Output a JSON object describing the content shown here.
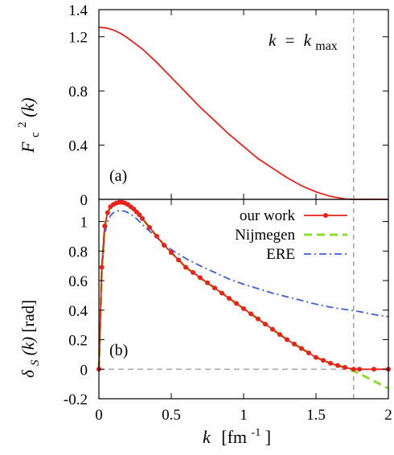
{
  "chart_data": [
    {
      "panel": "(a)",
      "type": "line",
      "ylabel": {
        "base": "F",
        "sub": "c",
        "sup": "2",
        "arg": "(k)"
      },
      "xlim": [
        0,
        2
      ],
      "ylim": [
        0,
        1.4
      ],
      "yticks": [
        "0",
        "0.4",
        "0.8",
        "1.2",
        "1.4"
      ],
      "annotation": {
        "lhs": "k",
        "eq": "=",
        "rhs": "k",
        "rhs_sub": "max"
      },
      "kmax": 1.76,
      "series": [
        {
          "color": "#e8211b",
          "x": [
            0,
            0.05,
            0.1,
            0.15,
            0.2,
            0.3,
            0.4,
            0.5,
            0.6,
            0.7,
            0.8,
            0.9,
            1.0,
            1.1,
            1.2,
            1.3,
            1.4,
            1.5,
            1.6,
            1.7,
            1.76,
            2.0
          ],
          "y": [
            1.27,
            1.265,
            1.25,
            1.225,
            1.19,
            1.11,
            1.01,
            0.9,
            0.79,
            0.68,
            0.58,
            0.48,
            0.39,
            0.3,
            0.23,
            0.16,
            0.1,
            0.055,
            0.022,
            0.003,
            0,
            0
          ]
        }
      ]
    },
    {
      "panel": "(b)",
      "type": "line",
      "ylabel": {
        "base": "δ",
        "sub": "S",
        "arg": "(k)",
        "unit": "[rad]"
      },
      "xlabel": {
        "var": "k",
        "unit_open": "[fm",
        "unit_sup": "-1",
        "unit_close": "]"
      },
      "xlim": [
        0,
        2
      ],
      "ylim": [
        -0.2,
        1.15
      ],
      "xticks": [
        "0",
        "0.5",
        "1",
        "1.5",
        "2"
      ],
      "yticks": [
        "-0.2",
        "0",
        "0.2",
        "0.4",
        "0.6",
        "0.8",
        "1"
      ],
      "legend_position": "top-right",
      "series": [
        {
          "name": "our work",
          "color": "#e8211b",
          "style": "solid-points",
          "x": [
            0,
            0.02,
            0.04,
            0.06,
            0.08,
            0.1,
            0.12,
            0.14,
            0.16,
            0.18,
            0.2,
            0.22,
            0.24,
            0.26,
            0.28,
            0.3,
            0.35,
            0.4,
            0.45,
            0.5,
            0.55,
            0.6,
            0.65,
            0.7,
            0.75,
            0.8,
            0.85,
            0.9,
            0.95,
            1.0,
            1.05,
            1.1,
            1.15,
            1.2,
            1.25,
            1.3,
            1.35,
            1.4,
            1.45,
            1.5,
            1.55,
            1.6,
            1.65,
            1.7,
            1.76,
            1.8,
            1.9,
            2.0
          ],
          "y": [
            0,
            0.69,
            0.97,
            1.06,
            1.1,
            1.115,
            1.125,
            1.13,
            1.13,
            1.125,
            1.115,
            1.1,
            1.085,
            1.065,
            1.045,
            1.02,
            0.96,
            0.9,
            0.84,
            0.79,
            0.74,
            0.69,
            0.655,
            0.62,
            0.585,
            0.55,
            0.515,
            0.48,
            0.445,
            0.41,
            0.375,
            0.34,
            0.305,
            0.27,
            0.235,
            0.2,
            0.17,
            0.14,
            0.11,
            0.08,
            0.06,
            0.04,
            0.025,
            0.012,
            0,
            0,
            0,
            0
          ]
        },
        {
          "name": "Nijmegen",
          "color": "#8cdd2a",
          "style": "dashed",
          "x": [
            0,
            0.02,
            0.04,
            0.06,
            0.08,
            0.1,
            0.14,
            0.18,
            0.22,
            0.26,
            0.3,
            0.4,
            0.5,
            0.6,
            0.7,
            0.8,
            0.9,
            1.0,
            1.1,
            1.2,
            1.3,
            1.4,
            1.5,
            1.6,
            1.7,
            1.8,
            1.9,
            2.0
          ],
          "y": [
            0,
            0.66,
            0.95,
            1.05,
            1.1,
            1.115,
            1.13,
            1.125,
            1.1,
            1.065,
            1.02,
            0.9,
            0.79,
            0.69,
            0.615,
            0.55,
            0.48,
            0.41,
            0.34,
            0.27,
            0.2,
            0.14,
            0.08,
            0.04,
            0.012,
            -0.03,
            -0.08,
            -0.13
          ]
        },
        {
          "name": "ERE",
          "color": "#3b5fd8",
          "style": "dashdot",
          "x": [
            0,
            0.02,
            0.04,
            0.06,
            0.08,
            0.1,
            0.14,
            0.18,
            0.22,
            0.26,
            0.3,
            0.4,
            0.5,
            0.6,
            0.7,
            0.8,
            0.9,
            1.0,
            1.1,
            1.2,
            1.3,
            1.4,
            1.5,
            1.6,
            1.7,
            1.8,
            1.9,
            2.0
          ],
          "y": [
            0,
            0.66,
            0.91,
            1.0,
            1.04,
            1.06,
            1.075,
            1.07,
            1.05,
            1.02,
            0.98,
            0.89,
            0.81,
            0.75,
            0.7,
            0.655,
            0.61,
            0.575,
            0.545,
            0.515,
            0.49,
            0.465,
            0.44,
            0.42,
            0.405,
            0.39,
            0.37,
            0.355
          ]
        }
      ]
    }
  ]
}
